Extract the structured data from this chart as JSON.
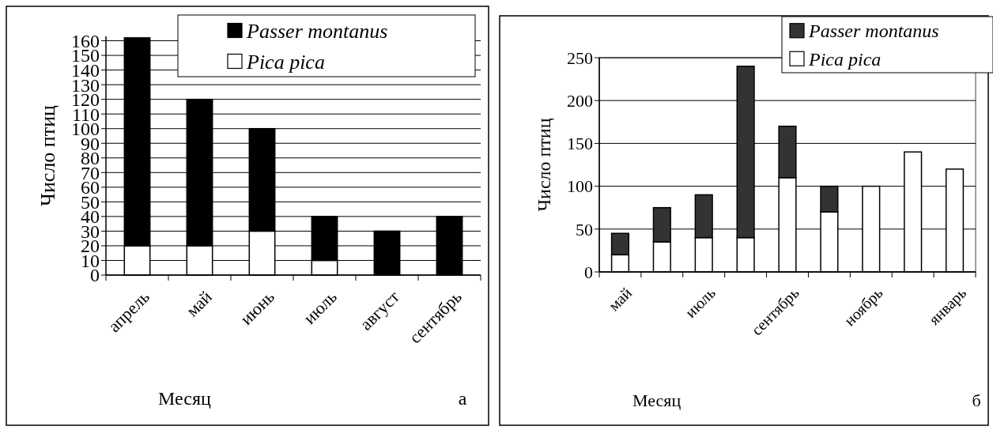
{
  "chart_data": [
    {
      "type": "bar",
      "stacked": true,
      "categories": [
        "апрель",
        "май",
        "июнь",
        "июль",
        "август",
        "сентябрь"
      ],
      "series": [
        {
          "name": "Pica pica",
          "color": "#ffffff",
          "values": [
            20,
            20,
            30,
            10,
            0,
            0
          ]
        },
        {
          "name": "Passer montanus",
          "color": "#000000",
          "values": [
            142,
            100,
            70,
            30,
            30,
            40
          ]
        }
      ],
      "ylim": [
        0,
        163
      ],
      "yticks": [
        0,
        10,
        20,
        30,
        40,
        50,
        60,
        70,
        80,
        90,
        100,
        110,
        120,
        130,
        140,
        150,
        160
      ],
      "grid": "y",
      "legend": "top right",
      "ylabel": "Число птиц",
      "xlabel": "Месяц",
      "annotations": [
        "а"
      ]
    },
    {
      "type": "bar",
      "stacked": true,
      "categories": [
        "май",
        null,
        "июль",
        null,
        "сентябрь",
        null,
        "ноябрь",
        null,
        "январь"
      ],
      "series": [
        {
          "name": "Pica pica",
          "color": "#ffffff",
          "values": [
            20,
            35,
            40,
            40,
            110,
            70,
            100,
            140,
            120
          ]
        },
        {
          "name": "Passer montanus",
          "color": "#333333",
          "values": [
            25,
            40,
            50,
            200,
            60,
            30,
            0,
            0,
            0
          ]
        }
      ],
      "ylim": [
        0,
        250
      ],
      "yticks": [
        0,
        50,
        100,
        150,
        200,
        250
      ],
      "grid": "y",
      "legend": "top right",
      "ylabel": "Число птиц",
      "xlabel": "Месяц",
      "annotations": [
        "б"
      ]
    }
  ]
}
